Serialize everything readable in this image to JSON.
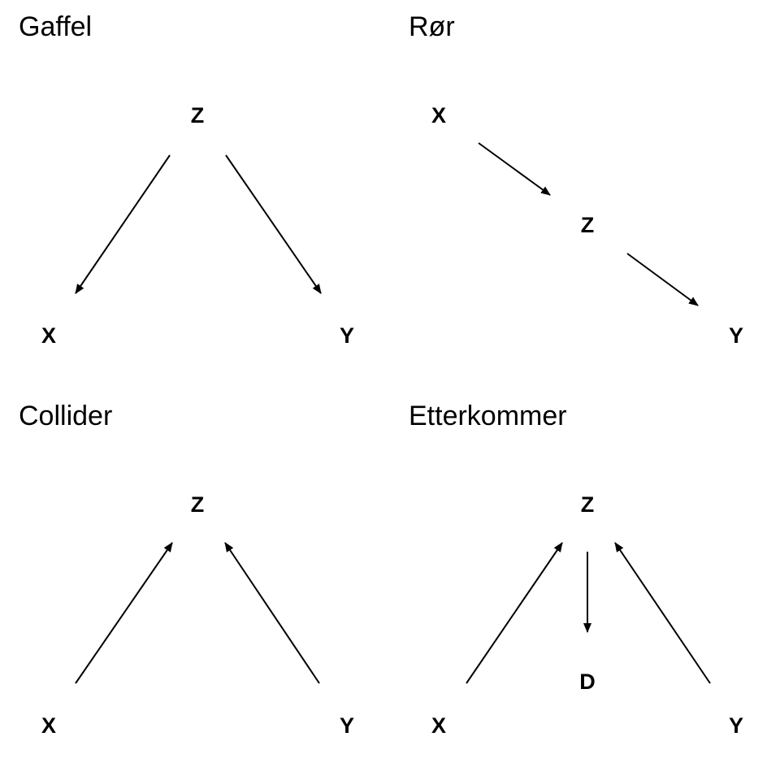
{
  "panels": {
    "gaffel": {
      "title": "Gaffel",
      "nodes": {
        "z": "Z",
        "x": "X",
        "y": "Y"
      },
      "edges": [
        [
          "Z",
          "X"
        ],
        [
          "Z",
          "Y"
        ]
      ]
    },
    "ror": {
      "title": "Rør",
      "nodes": {
        "x": "X",
        "z": "Z",
        "y": "Y"
      },
      "edges": [
        [
          "X",
          "Z"
        ],
        [
          "Z",
          "Y"
        ]
      ]
    },
    "collider": {
      "title": "Collider",
      "nodes": {
        "z": "Z",
        "x": "X",
        "y": "Y"
      },
      "edges": [
        [
          "X",
          "Z"
        ],
        [
          "Y",
          "Z"
        ]
      ]
    },
    "etterkommer": {
      "title": "Etterkommer",
      "nodes": {
        "z": "Z",
        "d": "D",
        "x": "X",
        "y": "Y"
      },
      "edges": [
        [
          "X",
          "Z"
        ],
        [
          "Y",
          "Z"
        ],
        [
          "Z",
          "D"
        ]
      ]
    }
  },
  "colors": {
    "ink": "#000000",
    "background": "#ffffff"
  }
}
